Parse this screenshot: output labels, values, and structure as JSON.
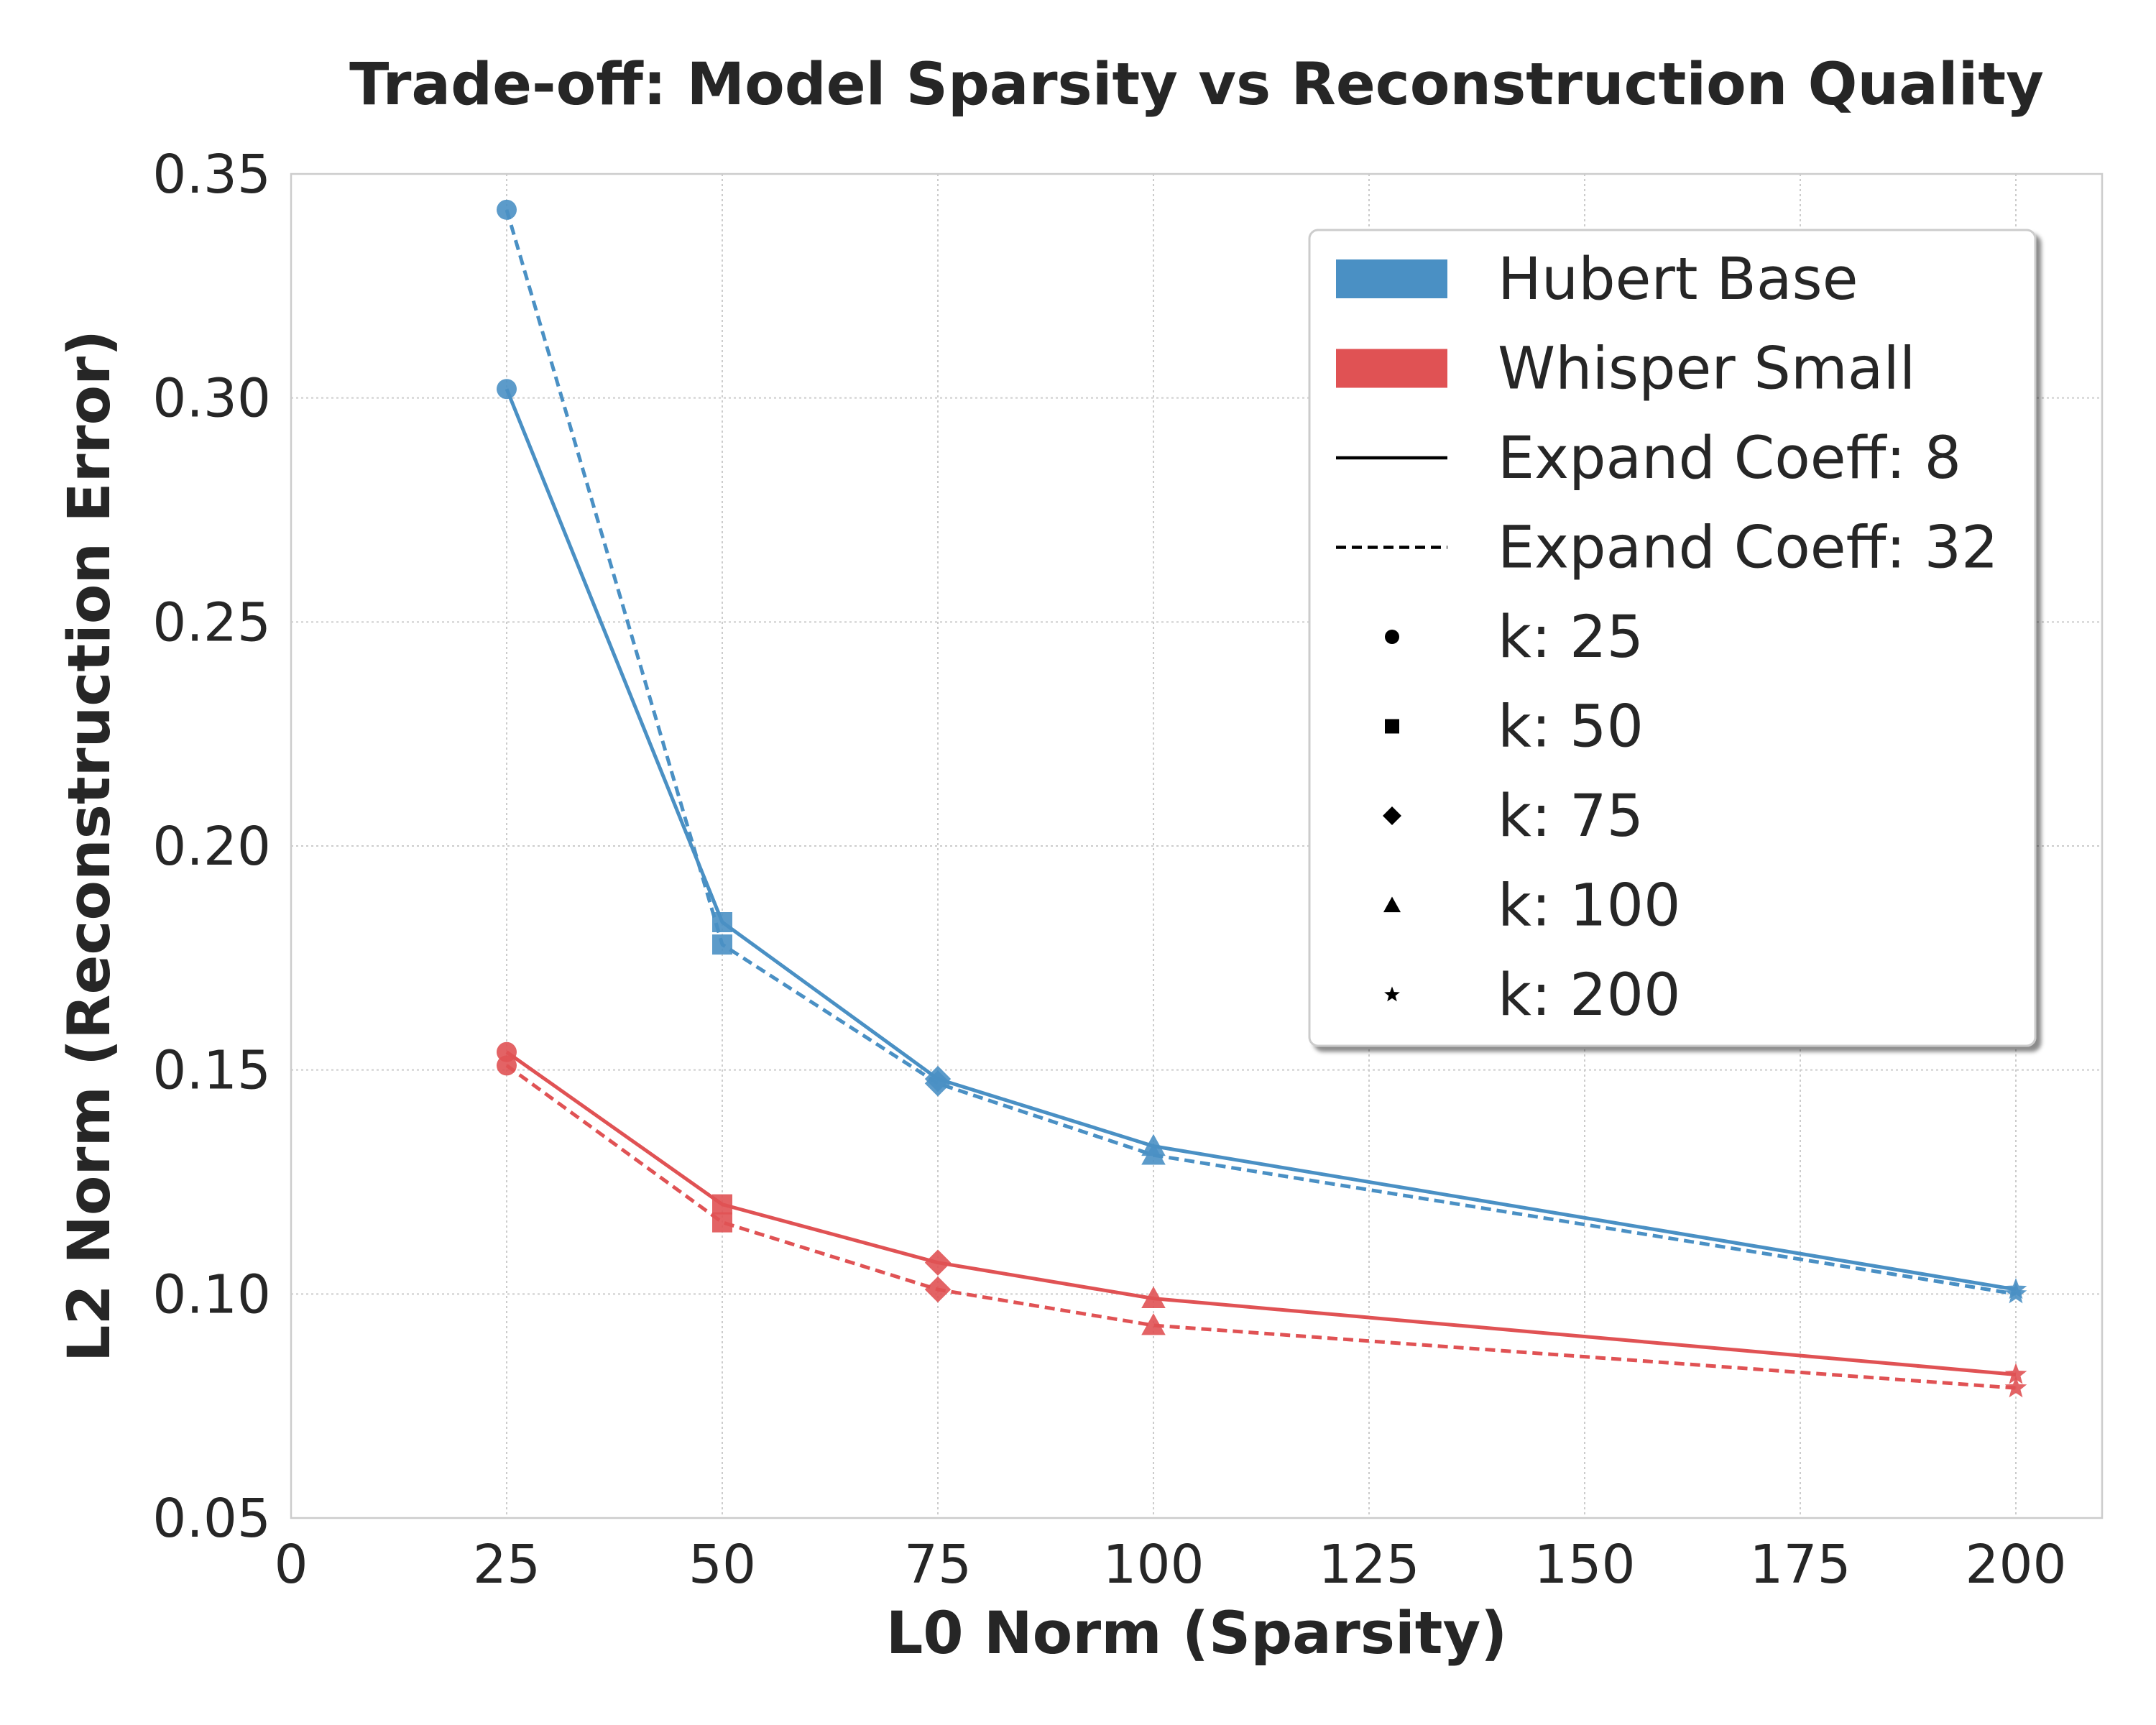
{
  "chart_data": {
    "type": "line",
    "title": "Trade-off: Model Sparsity vs Reconstruction Quality",
    "xlabel": "L0 Norm (Sparsity)",
    "ylabel": "L2 Norm (Reconstruction Error)",
    "xlim": [
      0,
      210
    ],
    "ylim": [
      0.05,
      0.35
    ],
    "xticks": [
      "0",
      "25",
      "50",
      "75",
      "100",
      "125",
      "150",
      "175",
      "200"
    ],
    "yticks": [
      "0.05",
      "0.10",
      "0.15",
      "0.20",
      "0.25",
      "0.30",
      "0.35"
    ],
    "grid": true,
    "legend_position": "top-right",
    "x": [
      25,
      50,
      75,
      100,
      200
    ],
    "series": [
      {
        "model": "Hubert Base",
        "coeff": "8",
        "style": "solid",
        "color": "#4a90c4",
        "values": [
          0.302,
          0.183,
          0.148,
          0.133,
          0.101
        ]
      },
      {
        "model": "Hubert Base",
        "coeff": "32",
        "style": "dashed",
        "color": "#4a90c4",
        "values": [
          0.342,
          0.178,
          0.147,
          0.131,
          0.1
        ]
      },
      {
        "model": "Whisper Small",
        "coeff": "8",
        "style": "solid",
        "color": "#e05254",
        "values": [
          0.154,
          0.12,
          0.107,
          0.099,
          0.082
        ]
      },
      {
        "model": "Whisper Small",
        "coeff": "32",
        "style": "dashed",
        "color": "#e05254",
        "values": [
          0.151,
          0.116,
          0.101,
          0.093,
          0.079
        ]
      }
    ],
    "markers": [
      "circle",
      "square",
      "diamond",
      "triangle",
      "star"
    ],
    "legend": {
      "models": [
        {
          "label": "Hubert Base",
          "color": "#4a90c4"
        },
        {
          "label": "Whisper Small",
          "color": "#e05254"
        }
      ],
      "styles": [
        {
          "label": "Expand Coeff: 8",
          "style": "solid"
        },
        {
          "label": "Expand Coeff: 32",
          "style": "dashed"
        }
      ],
      "marker_entries": [
        {
          "label": "k: 25",
          "marker": "circle"
        },
        {
          "label": "k: 50",
          "marker": "square"
        },
        {
          "label": "k: 75",
          "marker": "diamond"
        },
        {
          "label": "k: 100",
          "marker": "triangle"
        },
        {
          "label": "k: 200",
          "marker": "star"
        }
      ]
    }
  }
}
